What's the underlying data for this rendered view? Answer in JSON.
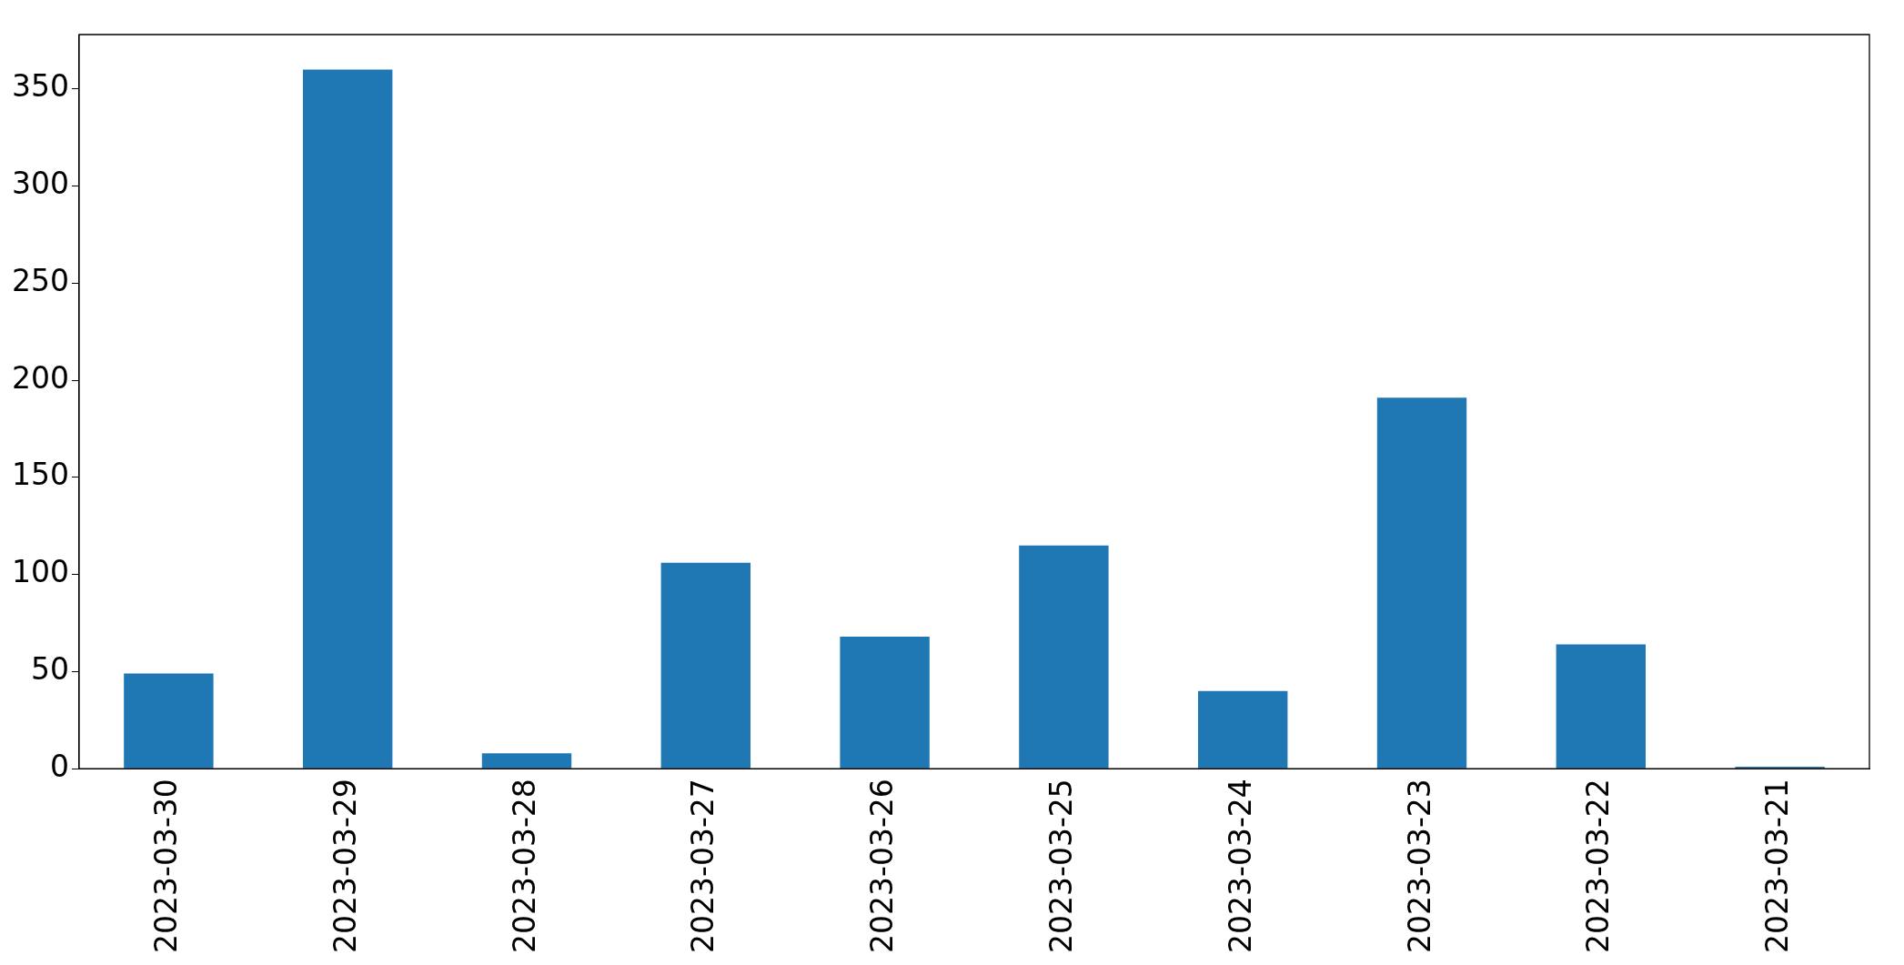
{
  "chart_data": {
    "type": "bar",
    "categories": [
      "2023-03-30",
      "2023-03-29",
      "2023-03-28",
      "2023-03-27",
      "2023-03-26",
      "2023-03-25",
      "2023-03-24",
      "2023-03-23",
      "2023-03-22",
      "2023-03-21"
    ],
    "values": [
      49,
      360,
      8,
      106,
      68,
      115,
      40,
      191,
      64,
      1
    ],
    "color": "#1f77b4",
    "ylim": [
      0,
      378
    ],
    "yticks": [
      0,
      50,
      100,
      150,
      200,
      250,
      300,
      350
    ],
    "grid": false,
    "legend": false
  }
}
